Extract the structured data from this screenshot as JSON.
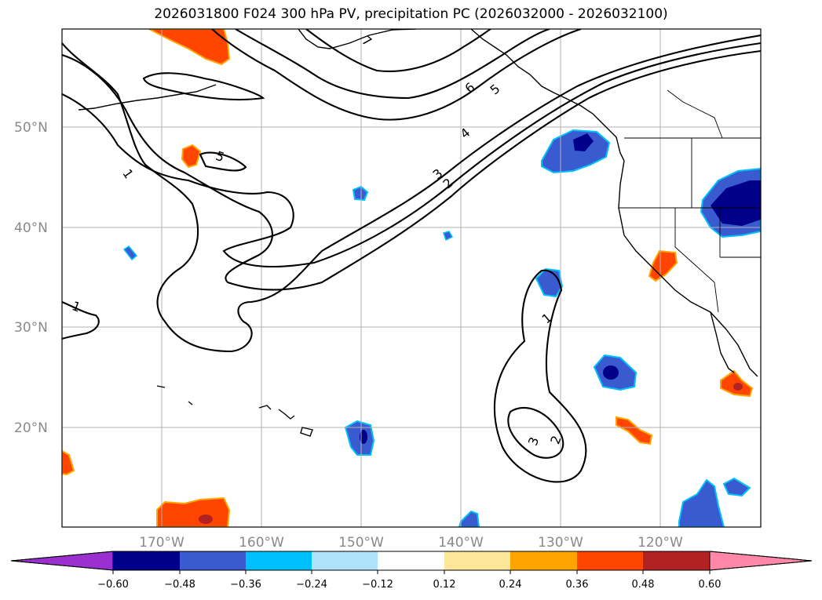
{
  "title": "2026031800 F024 300 hPa PV, precipitation PC (2026032000 - 2026032100)",
  "lat_labels": [
    "50°N",
    "40°N",
    "30°N",
    "20°N"
  ],
  "lon_labels": [
    "170°W",
    "160°W",
    "150°W",
    "140°W",
    "130°W",
    "120°W"
  ],
  "colorbar": {
    "ticks": [
      "−0.60",
      "−0.48",
      "−0.36",
      "−0.24",
      "−0.12",
      "0.12",
      "0.24",
      "0.36",
      "0.48",
      "0.60"
    ],
    "colors": [
      "#9a30d0",
      "#00008b",
      "#3a5bd0",
      "#00bfff",
      "#aee3fb",
      "#ffffff",
      "#ffe79a",
      "#ffa500",
      "#ff4500",
      "#b22222",
      "#ff88a8"
    ]
  },
  "contour_labels": {
    "pv1_nw": "1",
    "pv1_west": "1",
    "pv5_nw": "5",
    "pv7": "7",
    "pv6": "6",
    "pv5": "5",
    "pv4": "4",
    "pv3": "3",
    "pv2": "2",
    "pv1_south": "1",
    "pv3_south": "3",
    "pv2_south": "2"
  }
}
